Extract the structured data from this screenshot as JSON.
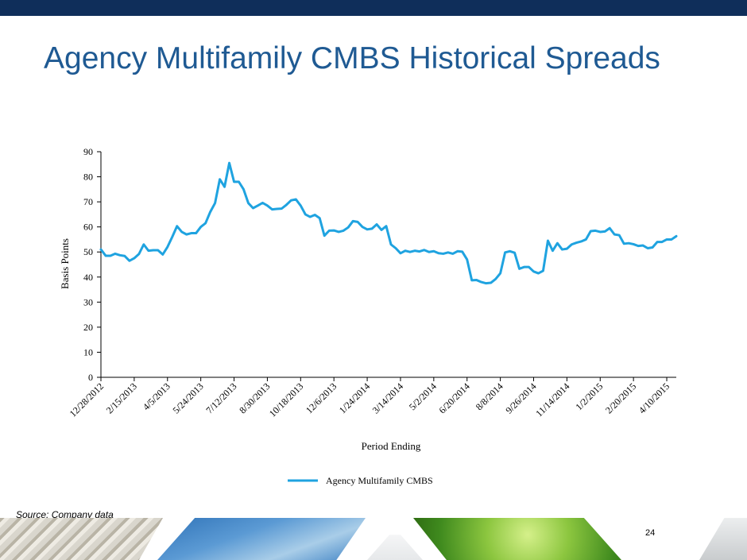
{
  "slide": {
    "title": "Agency Multifamily CMBS Historical Spreads",
    "source": "Source: Company data",
    "page_number": "24",
    "header_bar_color": "#0f2e5a",
    "title_color": "#1f5a93"
  },
  "chart_data": {
    "type": "line",
    "title": "",
    "xlabel": "Period Ending",
    "ylabel": "Basis Points",
    "ylim": [
      0,
      90
    ],
    "y_ticks": [
      0,
      10,
      20,
      30,
      40,
      50,
      60,
      70,
      80,
      90
    ],
    "x_tick_labels": [
      "12/28/2012",
      "2/15/2013",
      "4/5/2013",
      "5/24/2013",
      "7/12/2013",
      "8/30/2013",
      "10/18/2013",
      "12/6/2013",
      "1/24/2014",
      "3/14/2014",
      "5/2/2014",
      "6/20/2014",
      "8/8/2014",
      "9/26/2014",
      "11/14/2014",
      "1/2/2015",
      "2/20/2015",
      "4/10/2015"
    ],
    "legend_position": "bottom",
    "grid": false,
    "series": [
      {
        "name": "Agency Multifamily CMBS",
        "color": "#1fa3e0",
        "frequency": "weekly",
        "values": [
          51,
          48.5,
          48.5,
          49.3,
          48.7,
          48.4,
          46.5,
          47.5,
          49.2,
          53,
          50.5,
          50.7,
          50.7,
          49,
          52,
          56,
          60.3,
          58,
          57,
          57.5,
          57.5,
          60,
          61.5,
          66,
          69.5,
          79,
          76,
          85.5,
          78,
          78,
          75,
          69.5,
          67.5,
          68.5,
          69.6,
          68.5,
          67,
          67.2,
          67.3,
          68.8,
          70.6,
          71,
          68.5,
          65,
          64,
          64.8,
          63.5,
          56.5,
          58.5,
          58.6,
          58,
          58.5,
          59.8,
          62.3,
          62,
          60,
          59,
          59.3,
          61,
          58.8,
          60.3,
          53,
          51.5,
          49.5,
          50.5,
          50,
          50.5,
          50.2,
          50.8,
          50,
          50.3,
          49.5,
          49.3,
          49.8,
          49.3,
          50.3,
          50.1,
          47,
          38.7,
          38.8,
          38,
          37.5,
          37.7,
          39.2,
          41.5,
          49.8,
          50.3,
          49.7,
          43.3,
          44,
          44,
          42.2,
          41.5,
          42.5,
          54.5,
          50.5,
          53.5,
          51,
          51.3,
          53,
          53.7,
          54.2,
          55,
          58.3,
          58.5,
          58,
          58.2,
          59.5,
          57,
          56.7,
          53.3,
          53.5,
          53.1,
          52.4,
          52.6,
          51.5,
          51.8,
          54,
          54,
          55,
          55,
          56.3
        ]
      }
    ]
  }
}
